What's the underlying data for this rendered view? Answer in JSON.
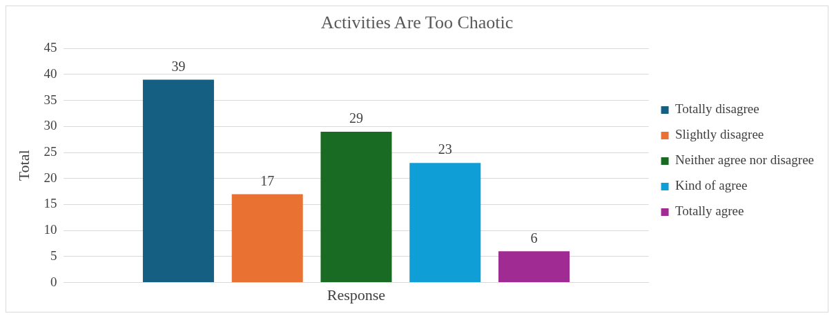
{
  "chart_data": {
    "type": "bar",
    "title": "Activities Are Too Chaotic",
    "ylabel": "Total",
    "categories": [
      "Response"
    ],
    "series": [
      {
        "name": "Totally disagree",
        "color": "#156082",
        "values": [
          39
        ]
      },
      {
        "name": "Slightly disagree",
        "color": "#e97132",
        "values": [
          17
        ]
      },
      {
        "name": "Neither agree nor disagree",
        "color": "#196b24",
        "values": [
          29
        ]
      },
      {
        "name": "Kind of agree",
        "color": "#0f9ed5",
        "values": [
          23
        ]
      },
      {
        "name": "Totally agree",
        "color": "#a02b93",
        "values": [
          6
        ]
      }
    ],
    "ylim": [
      0,
      45
    ],
    "yticks": [
      0,
      5,
      10,
      15,
      20,
      25,
      30,
      35,
      40,
      45
    ],
    "grid": "y",
    "legend": "right",
    "data_labels": true
  }
}
